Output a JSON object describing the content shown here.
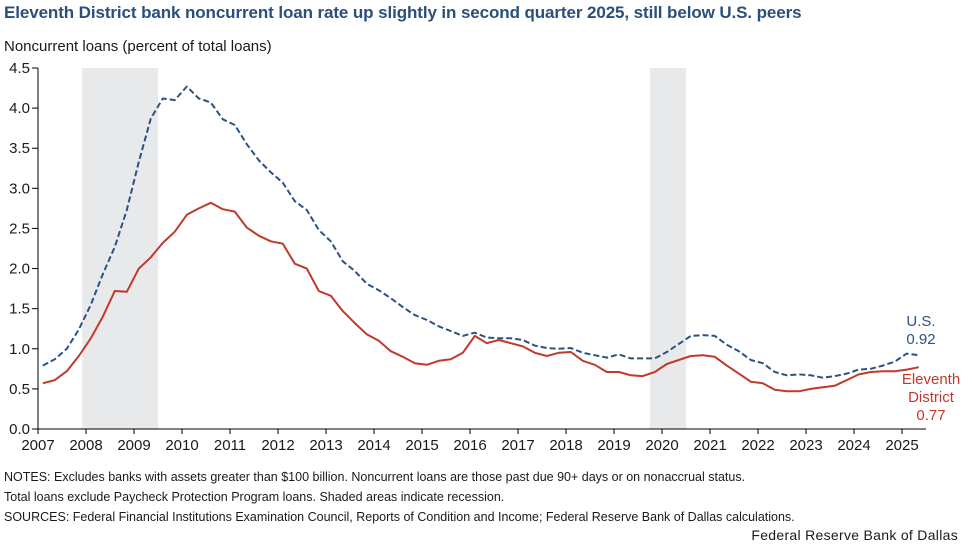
{
  "chart_data": {
    "type": "line",
    "title": "Eleventh District bank noncurrent loan rate up slightly in second quarter 2025, still below U.S. peers",
    "ylabel": "Noncurrent loans (percent of total loans)",
    "xlabel": "",
    "ylim": [
      0,
      4.5
    ],
    "yticks": [
      "0.0",
      "0.5",
      "1.0",
      "1.5",
      "2.0",
      "2.5",
      "3.0",
      "3.5",
      "4.0",
      "4.5"
    ],
    "ytick_values": [
      0,
      0.5,
      1.0,
      1.5,
      2.0,
      2.5,
      3.0,
      3.5,
      4.0,
      4.5
    ],
    "xlim": [
      2007,
      2025.6
    ],
    "xticks": [
      "2007",
      "2008",
      "2009",
      "2010",
      "2011",
      "2012",
      "2013",
      "2014",
      "2015",
      "2016",
      "2017",
      "2018",
      "2019",
      "2020",
      "2021",
      "2022",
      "2023",
      "2024",
      "2025"
    ],
    "grid": false,
    "frequency": "quarterly",
    "start": "2007Q1",
    "end": "2025Q2",
    "recessions": [
      {
        "start": 2007.92,
        "end": 2009.5
      },
      {
        "start": 2019.75,
        "end": 2020.5
      }
    ],
    "series": [
      {
        "name": "U.S.",
        "color": "#2b5283",
        "style": "dashed",
        "values": [
          0.79,
          0.87,
          1.0,
          1.24,
          1.55,
          1.93,
          2.27,
          2.73,
          3.33,
          3.87,
          4.12,
          4.1,
          4.27,
          4.12,
          4.07,
          3.86,
          3.79,
          3.55,
          3.35,
          3.2,
          3.07,
          2.84,
          2.73,
          2.48,
          2.34,
          2.09,
          1.97,
          1.81,
          1.73,
          1.63,
          1.52,
          1.42,
          1.36,
          1.28,
          1.22,
          1.16,
          1.2,
          1.14,
          1.13,
          1.13,
          1.11,
          1.04,
          1.01,
          1.0,
          1.01,
          0.95,
          0.92,
          0.89,
          0.93,
          0.88,
          0.88,
          0.88,
          0.96,
          1.06,
          1.16,
          1.17,
          1.16,
          1.05,
          0.97,
          0.86,
          0.82,
          0.71,
          0.67,
          0.68,
          0.67,
          0.64,
          0.66,
          0.69,
          0.74,
          0.75,
          0.79,
          0.84,
          0.94,
          0.92
        ]
      },
      {
        "name": "Eleventh District",
        "color": "#c0392b",
        "style": "solid",
        "values": [
          0.57,
          0.61,
          0.72,
          0.91,
          1.13,
          1.4,
          1.72,
          1.71,
          2.0,
          2.14,
          2.32,
          2.46,
          2.67,
          2.75,
          2.82,
          2.74,
          2.71,
          2.51,
          2.41,
          2.34,
          2.31,
          2.06,
          2.0,
          1.72,
          1.66,
          1.47,
          1.32,
          1.18,
          1.1,
          0.97,
          0.9,
          0.82,
          0.8,
          0.85,
          0.87,
          0.95,
          1.16,
          1.07,
          1.11,
          1.07,
          1.03,
          0.95,
          0.91,
          0.95,
          0.96,
          0.85,
          0.8,
          0.71,
          0.71,
          0.67,
          0.66,
          0.71,
          0.81,
          0.86,
          0.91,
          0.92,
          0.9,
          0.79,
          0.69,
          0.59,
          0.57,
          0.49,
          0.47,
          0.47,
          0.5,
          0.52,
          0.54,
          0.61,
          0.68,
          0.71,
          0.72,
          0.72,
          0.74,
          0.77
        ]
      }
    ],
    "annotations": [
      {
        "series": "U.S.",
        "lines": [
          "U.S.",
          "0.92"
        ]
      },
      {
        "series": "Eleventh District",
        "lines": [
          "Eleventh",
          "District",
          "0.77"
        ]
      }
    ]
  },
  "notes": {
    "line1": "NOTES: Excludes banks with assets greater than $100 billion. Noncurrent loans are those past due 90+ days or on nonaccrual status.",
    "line2": "Total loans exclude Paycheck Protection Program loans. Shaded areas indicate recession.",
    "line3": "SOURCES: Federal Financial Institutions Examination Council, Reports of Condition and Income; Federal Reserve Bank of Dallas calculations."
  },
  "credit": "Federal Reserve Bank of Dallas"
}
